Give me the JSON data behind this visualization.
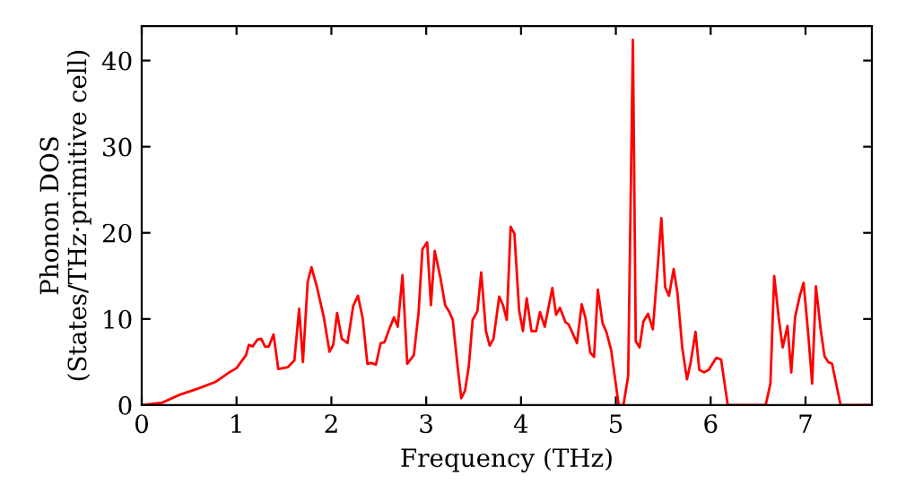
{
  "chart_data": {
    "type": "line",
    "xlabel": "Frequency (THz)",
    "ylabel": "Phonon DOS\n(States/THz·primitive cell)",
    "xlim": [
      0,
      7.7
    ],
    "ylim": [
      0,
      44
    ],
    "xticks": [
      0,
      1,
      2,
      3,
      4,
      5,
      6,
      7
    ],
    "yticks": [
      0,
      10,
      20,
      30,
      40
    ],
    "marker": "none",
    "line_style": "solid",
    "series": [
      {
        "color": "#ff0000",
        "x": [
          0,
          0.22,
          0.4,
          0.59,
          0.78,
          0.91,
          1.0,
          1.1,
          1.13,
          1.17,
          1.22,
          1.26,
          1.3,
          1.34,
          1.39,
          1.44,
          1.54,
          1.61,
          1.66,
          1.7,
          1.75,
          1.79,
          1.85,
          1.92,
          1.98,
          2.02,
          2.06,
          2.11,
          2.17,
          2.23,
          2.28,
          2.33,
          2.38,
          2.42,
          2.47,
          2.52,
          2.56,
          2.61,
          2.66,
          2.7,
          2.75,
          2.8,
          2.87,
          2.92,
          2.96,
          3.01,
          3.05,
          3.09,
          3.15,
          3.2,
          3.24,
          3.28,
          3.33,
          3.37,
          3.41,
          3.45,
          3.49,
          3.54,
          3.58,
          3.63,
          3.67,
          3.71,
          3.77,
          3.81,
          3.85,
          3.89,
          3.93,
          3.98,
          4.02,
          4.06,
          4.11,
          4.16,
          4.2,
          4.25,
          4.33,
          4.37,
          4.41,
          4.47,
          4.5,
          4.55,
          4.59,
          4.64,
          4.68,
          4.73,
          4.77,
          4.81,
          4.86,
          4.9,
          4.95,
          4.99,
          5.03,
          5.08,
          5.13,
          5.18,
          5.21,
          5.25,
          5.29,
          5.34,
          5.39,
          5.43,
          5.48,
          5.52,
          5.56,
          5.61,
          5.65,
          5.7,
          5.75,
          5.79,
          5.84,
          5.88,
          5.93,
          5.98,
          6.02,
          6.06,
          6.11,
          6.18,
          6.58,
          6.63,
          6.67,
          6.72,
          6.76,
          6.81,
          6.85,
          6.89,
          6.94,
          6.98,
          7.03,
          7.07,
          7.11,
          7.16,
          7.2,
          7.24,
          7.28,
          7.37,
          7.7
        ],
        "values": [
          0,
          0.3,
          1.2,
          1.9,
          2.7,
          3.7,
          4.3,
          5.8,
          7,
          6.8,
          7.6,
          7.7,
          6.8,
          6.8,
          8.2,
          4.2,
          4.4,
          5.2,
          11.2,
          5,
          14.3,
          16,
          13.6,
          10.2,
          6.2,
          7,
          10.7,
          7.7,
          7.2,
          11.5,
          12.7,
          10.1,
          4.8,
          4.9,
          4.7,
          7.2,
          7.3,
          8.8,
          10.2,
          9.1,
          15.1,
          4.8,
          5.8,
          10.8,
          18.1,
          18.9,
          11.6,
          17.9,
          14.8,
          11.6,
          10.9,
          9.9,
          4.6,
          0.8,
          1.7,
          4.6,
          9.9,
          10.9,
          15.4,
          8.6,
          6.9,
          7.7,
          12.6,
          11.6,
          9.9,
          20.7,
          19.9,
          11,
          8.6,
          12.4,
          8.6,
          8.6,
          10.8,
          9.1,
          13.6,
          10.5,
          11.3,
          9.6,
          9.4,
          8.2,
          7.2,
          11.7,
          10.1,
          6.1,
          5.6,
          13.4,
          9.5,
          8.5,
          6.4,
          3.2,
          0,
          0,
          3.4,
          42.4,
          7.4,
          6.7,
          9.7,
          10.6,
          8.8,
          14.4,
          21.7,
          13.7,
          12.7,
          15.8,
          13,
          6.7,
          3,
          5,
          8.5,
          4.1,
          3.8,
          4.1,
          4.8,
          5.5,
          5.3,
          0,
          0,
          2.5,
          15,
          9.9,
          6.7,
          9.2,
          3.8,
          10.2,
          12.7,
          14.2,
          8.1,
          2.5,
          13.8,
          8.8,
          5.7,
          5,
          4.8,
          0,
          0
        ]
      }
    ]
  }
}
